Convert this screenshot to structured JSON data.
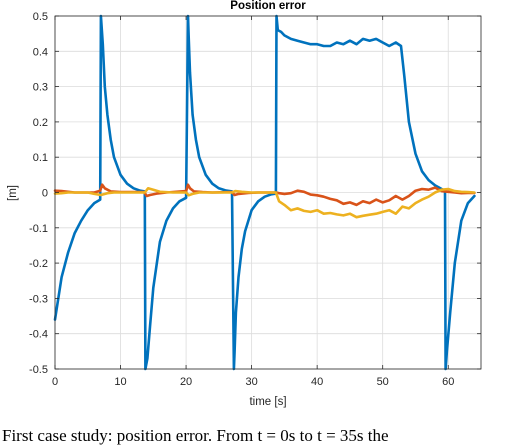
{
  "chart_data": {
    "type": "line",
    "title": "Position error",
    "xlabel": "time [s]",
    "ylabel": "[m]",
    "xlim": [
      0,
      65
    ],
    "ylim": [
      -0.5,
      0.5
    ],
    "xticks": [
      0,
      10,
      20,
      30,
      40,
      50,
      60
    ],
    "yticks": [
      -0.5,
      -0.4,
      -0.3,
      -0.2,
      -0.1,
      0,
      0.1,
      0.2,
      0.3,
      0.4,
      0.5
    ],
    "xtick_labels": [
      "0",
      "10",
      "20",
      "30",
      "40",
      "50",
      "60"
    ],
    "ytick_labels": [
      "-0.5",
      "-0.4",
      "-0.3",
      "-0.2",
      "-0.1",
      "0",
      "0.1",
      "0.2",
      "0.3",
      "0.4",
      "0.5"
    ],
    "grid": true,
    "series": [
      {
        "color": "#0072BD",
        "x": [
          0,
          0.5,
          1,
          2,
          3,
          4,
          5,
          6,
          6.9,
          7,
          7.3,
          7.6,
          8,
          8.5,
          9,
          10,
          11,
          12,
          13,
          13.7,
          13.8,
          14.1,
          14.5,
          15,
          16,
          17,
          18,
          19,
          20,
          20.3,
          20.4,
          20.6,
          21,
          21.5,
          22,
          23,
          24,
          25,
          26,
          27,
          27.3,
          27.4,
          27.6,
          28,
          28.5,
          29,
          30,
          31,
          32,
          33,
          33.7,
          33.8,
          34,
          34.5,
          35,
          36,
          37,
          38,
          39,
          40,
          41,
          42,
          43,
          44,
          45,
          46,
          47,
          48,
          49,
          50,
          51,
          52,
          52.8,
          53.3,
          54,
          55,
          56,
          57,
          58,
          59,
          59.5,
          59.6,
          59.8,
          60.3,
          61,
          62,
          63,
          64
        ],
        "y": [
          -0.36,
          -0.3,
          -0.24,
          -0.17,
          -0.115,
          -0.08,
          -0.05,
          -0.03,
          -0.02,
          0.5,
          0.42,
          0.3,
          0.22,
          0.15,
          0.1,
          0.05,
          0.025,
          0.012,
          0.005,
          0.003,
          -0.5,
          -0.47,
          -0.38,
          -0.27,
          -0.14,
          -0.08,
          -0.045,
          -0.025,
          -0.015,
          0.5,
          0.44,
          0.34,
          0.22,
          0.15,
          0.1,
          0.05,
          0.025,
          0.012,
          0.006,
          0.003,
          -0.5,
          -0.45,
          -0.34,
          -0.24,
          -0.16,
          -0.11,
          -0.05,
          -0.025,
          -0.012,
          -0.005,
          -0.003,
          0.5,
          0.46,
          0.455,
          0.445,
          0.435,
          0.43,
          0.425,
          0.42,
          0.42,
          0.415,
          0.415,
          0.425,
          0.42,
          0.43,
          0.42,
          0.435,
          0.43,
          0.435,
          0.425,
          0.415,
          0.425,
          0.415,
          0.33,
          0.2,
          0.11,
          0.06,
          0.035,
          0.02,
          0.01,
          0.005,
          -0.5,
          -0.45,
          -0.34,
          -0.2,
          -0.08,
          -0.03,
          -0.01
        ]
      },
      {
        "color": "#D95319",
        "x": [
          0,
          1,
          2,
          3,
          4,
          5,
          6,
          6.9,
          7.2,
          7.6,
          8.5,
          10,
          12,
          13.6,
          14,
          14.5,
          15.5,
          17,
          20,
          20.3,
          20.6,
          21.2,
          22.5,
          24,
          27,
          27.4,
          28,
          29.5,
          31,
          33.7,
          34.2,
          35,
          36,
          37,
          38,
          39,
          40,
          41,
          42,
          43,
          44,
          45,
          46,
          47,
          48,
          49,
          50,
          51,
          52,
          53,
          54,
          55,
          56,
          57,
          58,
          59,
          60,
          61,
          62,
          63,
          64
        ],
        "y": [
          0.005,
          0.004,
          0.002,
          0,
          0,
          0,
          0,
          0.005,
          0.022,
          0.012,
          0.003,
          0.001,
          0.001,
          0.001,
          -0.01,
          -0.007,
          -0.003,
          0,
          0.004,
          0.022,
          0.012,
          0.003,
          0.001,
          0,
          0.001,
          -0.007,
          -0.004,
          -0.001,
          0,
          0,
          -0.002,
          -0.004,
          -0.002,
          0.005,
          0.002,
          -0.006,
          -0.008,
          -0.012,
          -0.018,
          -0.022,
          -0.032,
          -0.028,
          -0.035,
          -0.025,
          -0.03,
          -0.02,
          -0.028,
          -0.022,
          -0.01,
          -0.02,
          -0.01,
          0.005,
          0.01,
          0.008,
          0.014,
          0.004,
          0.002,
          0,
          -0.002,
          -0.001,
          -0.001
        ]
      },
      {
        "color": "#EDB120",
        "x": [
          0,
          1,
          2,
          3,
          4,
          5,
          6,
          7,
          8,
          9,
          10,
          12,
          13.7,
          14.2,
          15,
          16,
          18,
          20,
          20.4,
          21,
          22,
          24,
          27,
          27.5,
          28.5,
          30,
          33.7,
          34.2,
          35,
          36,
          37,
          38,
          39,
          40,
          41,
          42,
          43,
          44,
          45,
          46,
          47,
          48,
          49,
          50,
          51,
          52,
          53,
          54,
          55,
          56,
          57,
          58,
          59,
          60,
          61,
          62,
          63,
          64
        ],
        "y": [
          -0.003,
          -0.002,
          0,
          0,
          0,
          0,
          -0.004,
          -0.007,
          -0.002,
          0,
          0,
          0,
          0,
          0.012,
          0.008,
          0.002,
          0,
          0,
          -0.008,
          -0.004,
          0,
          0,
          0,
          0.004,
          0.002,
          0,
          0,
          -0.025,
          -0.035,
          -0.05,
          -0.045,
          -0.052,
          -0.055,
          -0.05,
          -0.06,
          -0.058,
          -0.062,
          -0.065,
          -0.06,
          -0.07,
          -0.066,
          -0.063,
          -0.06,
          -0.055,
          -0.05,
          -0.06,
          -0.04,
          -0.045,
          -0.03,
          -0.02,
          -0.012,
          0,
          0.008,
          0.01,
          0.004,
          0.002,
          0.001,
          0
        ]
      }
    ]
  },
  "caption": "First case study: position error. From t = 0s to t = 35s the"
}
